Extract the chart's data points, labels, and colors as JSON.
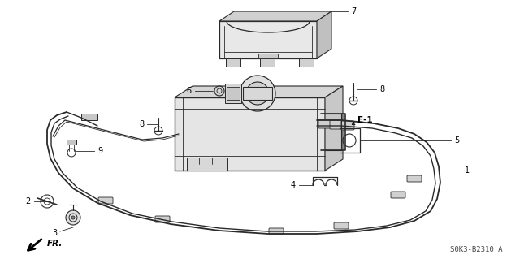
{
  "bg_color": "#ffffff",
  "line_color": "#2a2a2a",
  "part_code": "S0K3-B2310 A",
  "figsize": [
    6.4,
    3.19
  ],
  "dpi": 100
}
